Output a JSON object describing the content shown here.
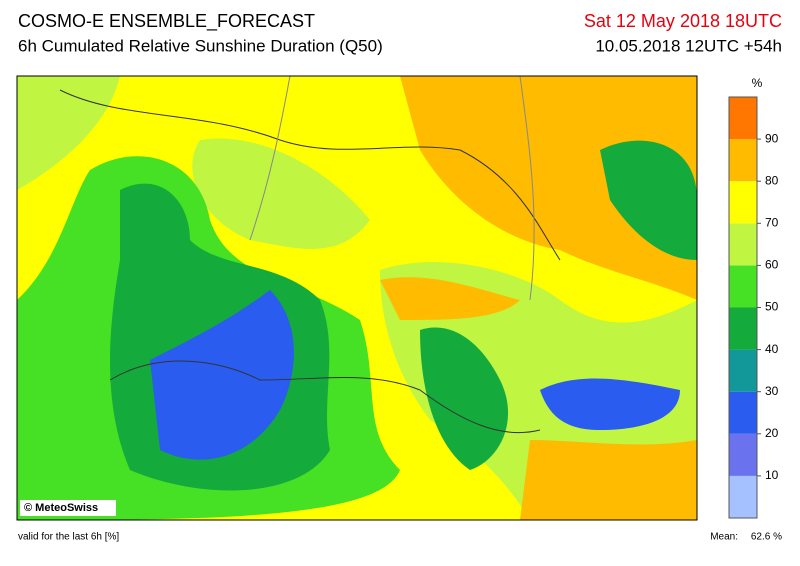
{
  "header": {
    "title": "COSMO-E ENSEMBLE_FORECAST",
    "subtitle": "6h Cumulated Relative Sunshine Duration (Q50)",
    "valid_time": "Sat 12 May 2018 18UTC",
    "run": "10.05.2018 12UTC +54h"
  },
  "map": {
    "credit": "© MeteoSwiss"
  },
  "legend": {
    "unit": "%",
    "lim": [
      0,
      100
    ],
    "ticks": [
      10,
      20,
      30,
      40,
      50,
      60,
      70,
      80,
      90
    ],
    "colors": [
      "#a6c1ff",
      "#6a72ee",
      "#2a5cf0",
      "#13989a",
      "#14ab3c",
      "#46e024",
      "#c0f542",
      "#ffff00",
      "#ffbb00",
      "#ff7700"
    ]
  },
  "footer": {
    "note": "valid for the last 6h [%]",
    "mean_label": "Mean:",
    "mean_value": "62.6 %"
  }
}
